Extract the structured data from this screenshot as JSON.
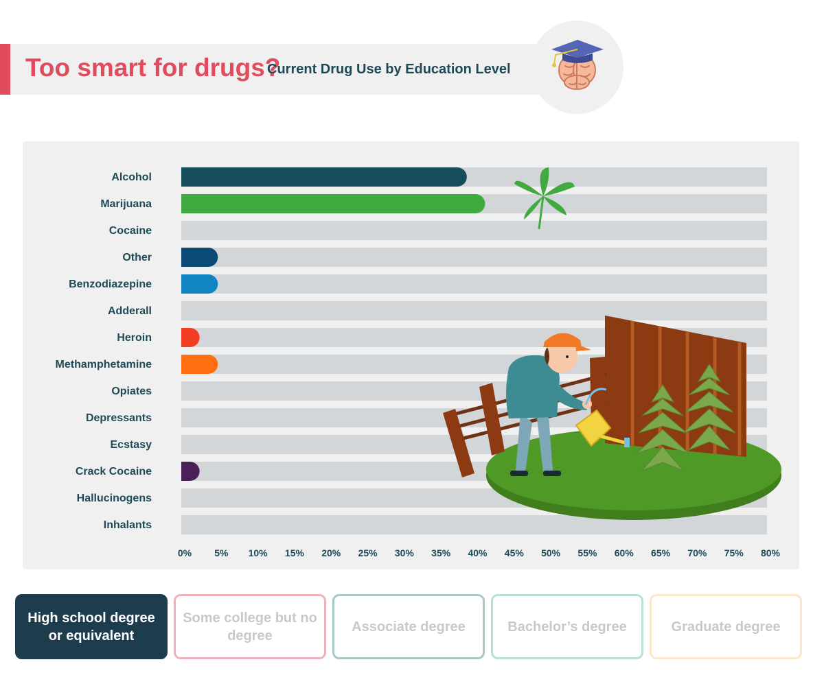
{
  "header": {
    "title": "Too smart for drugs?",
    "subtitle": "Current Drug Use by Education Level",
    "icon": "graduation-brain-icon"
  },
  "chart_data": {
    "type": "bar",
    "orientation": "horizontal",
    "categories": [
      "Alcohol",
      "Marijuana",
      "Cocaine",
      "Other",
      "Benzodiazepine",
      "Adderall",
      "Heroin",
      "Methamphetamine",
      "Opiates",
      "Depressants",
      "Ecstasy",
      "Crack Cocaine",
      "Hallucinogens",
      "Inhalants"
    ],
    "values": [
      39,
      41.5,
      0,
      5,
      5,
      0,
      2.5,
      5,
      0,
      0,
      0,
      2.5,
      0,
      0
    ],
    "colors": [
      "#154d5a",
      "#40aa40",
      "#8e8e8e",
      "#0c4a76",
      "#1185c1",
      "#7a7a7a",
      "#f43e24",
      "#ff6f12",
      "#999999",
      "#999999",
      "#999999",
      "#4a2058",
      "#999999",
      "#999999"
    ],
    "track_color": "#d3d6d9",
    "xlim": [
      0,
      80
    ],
    "xticks": [
      "0%",
      "5%",
      "10%",
      "15%",
      "20%",
      "25%",
      "30%",
      "35%",
      "40%",
      "45%",
      "50%",
      "55%",
      "60%",
      "65%",
      "70%",
      "75%",
      "80%"
    ],
    "xlabel": "",
    "ylabel": "",
    "grid": false,
    "legend": "none"
  },
  "tabs": [
    {
      "label": "High school degree or equivalent",
      "active": true
    },
    {
      "label": "Some college but no degree",
      "active": false
    },
    {
      "label": "Associate degree",
      "active": false
    },
    {
      "label": "Bachelor’s degree",
      "active": false
    },
    {
      "label": "Graduate degree",
      "active": false
    }
  ],
  "illustration": {
    "icons": [
      "cannabis-leaf-icon",
      "gardener-illustration",
      "watering-can-icon",
      "cannabis-plant-icon",
      "wooden-fence-icon"
    ]
  }
}
